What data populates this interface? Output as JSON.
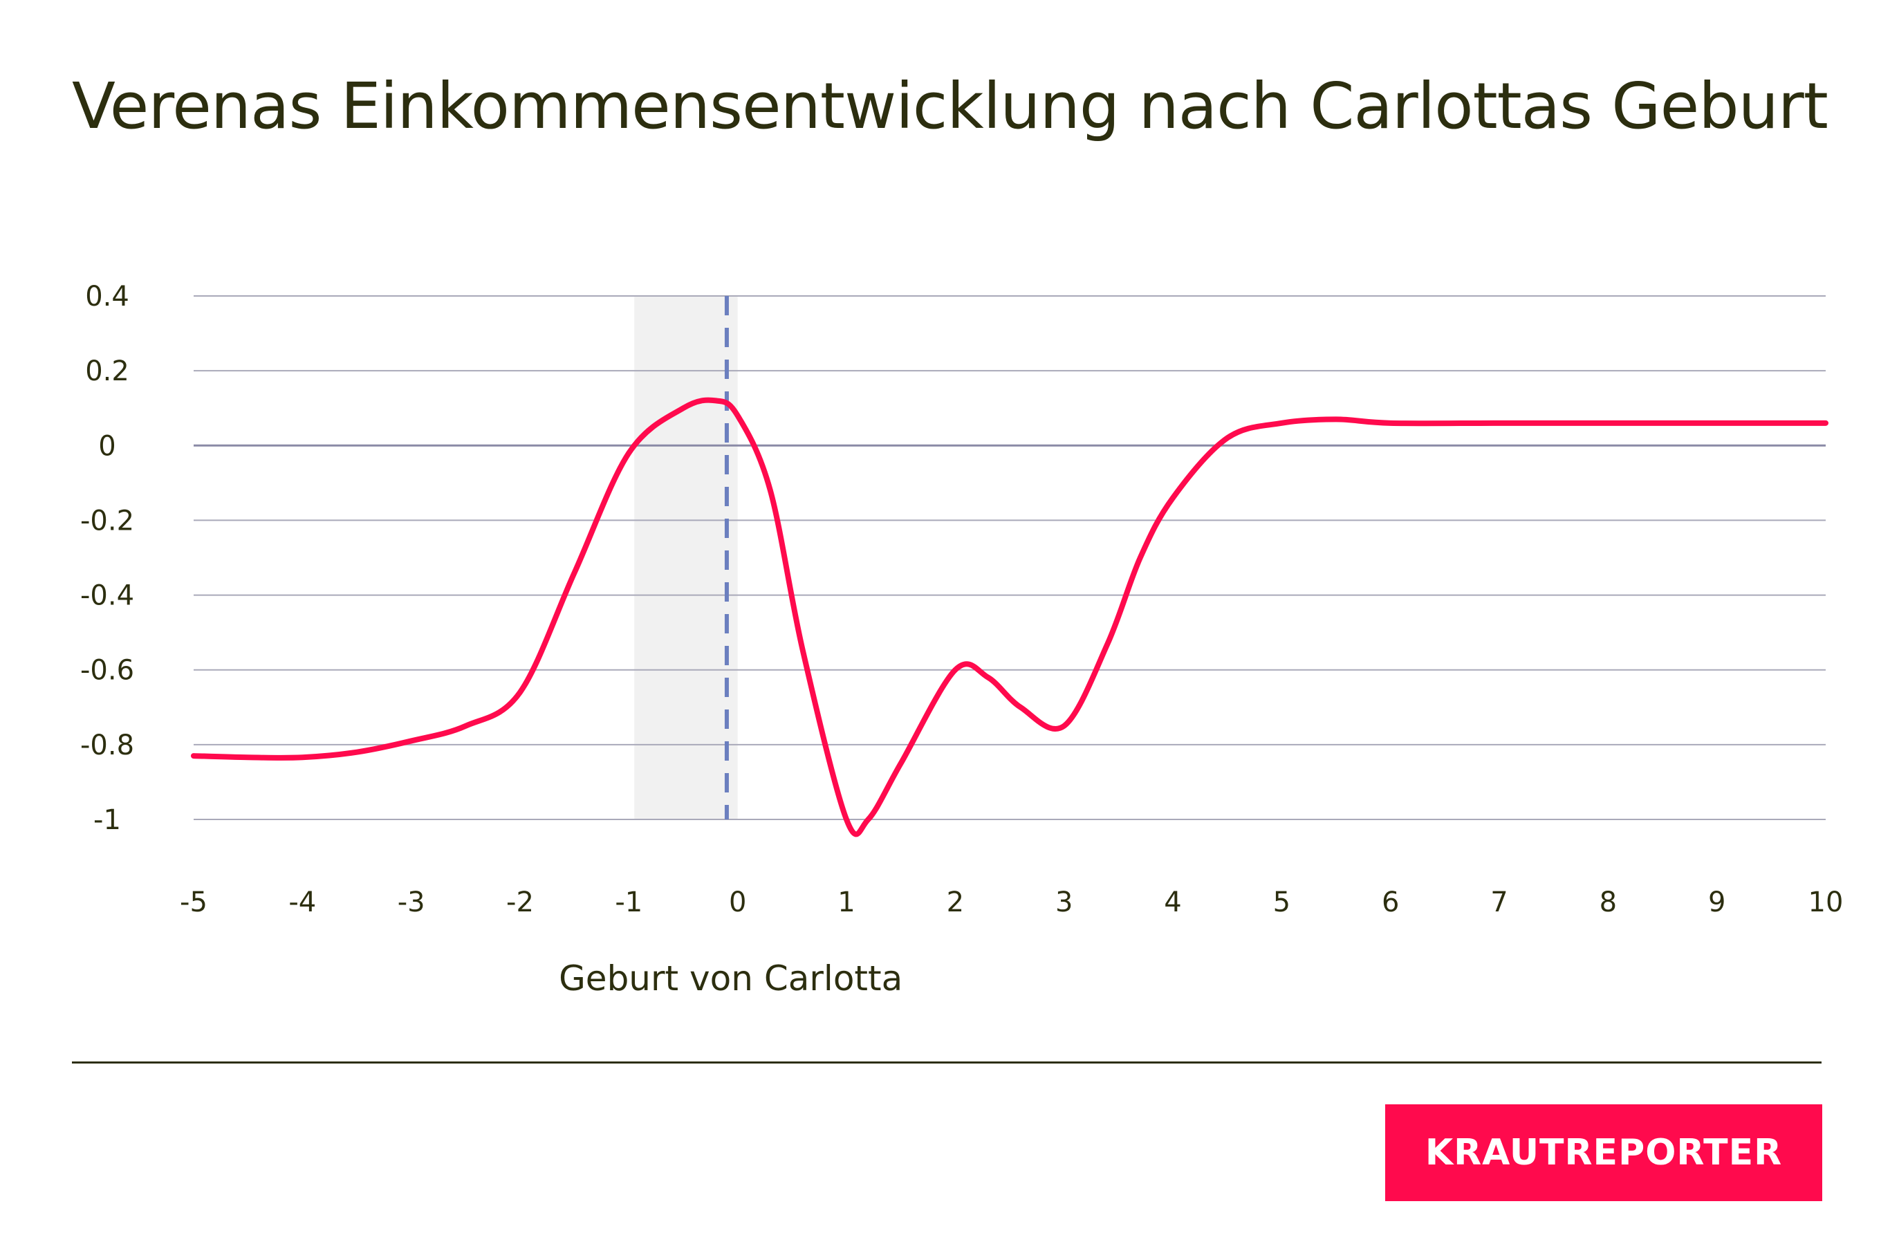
{
  "title": "Verenas Einkommensentwicklung nach Carlottas Geburt",
  "brand": {
    "label": "KRAUTREPORTER",
    "color": "#ff0a4d"
  },
  "chart_data": {
    "type": "line",
    "title": "Verenas Einkommensentwicklung nach Carlottas Geburt",
    "xlabel": "",
    "ylabel": "",
    "xlim": [
      -5,
      10
    ],
    "ylim": [
      -1,
      0.4
    ],
    "x_ticks": [
      -5,
      -4,
      -3,
      -2,
      -1,
      0,
      1,
      2,
      3,
      4,
      5,
      6,
      7,
      8,
      9,
      10
    ],
    "x_tick_labels": [
      "-5",
      "-4",
      "-3",
      "-2",
      "-1",
      "0",
      "1",
      "2",
      "3",
      "4",
      "5",
      "6",
      "7",
      "8",
      "9",
      "10"
    ],
    "y_ticks": [
      0.4,
      0.2,
      0,
      -0.2,
      -0.4,
      -0.6,
      -0.8,
      -1
    ],
    "y_tick_labels": [
      "0.4",
      "0.2",
      "0",
      "-0.2",
      "-0.4",
      "-0.6",
      "-0.8",
      "-1"
    ],
    "grid": "horizontal",
    "highlight_band": {
      "x": [
        -0.95,
        0
      ]
    },
    "reference_line": {
      "x": -0.1,
      "style": "dashed",
      "color": "#6b7fbf"
    },
    "annotation": {
      "text": "Geburt von Carlotta",
      "x": 0
    },
    "series": [
      {
        "color": "#ff0a4d",
        "x": [
          -5,
          -4.5,
          -4,
          -3.5,
          -3,
          -2.5,
          -2,
          -1.5,
          -1,
          -0.5,
          -0.2,
          0,
          0.3,
          0.6,
          1,
          1.2,
          1.5,
          2,
          2.3,
          2.6,
          3,
          3.4,
          3.7,
          4,
          4.5,
          5,
          5.5,
          6,
          7,
          8,
          9,
          10
        ],
        "y": [
          -0.83,
          -0.834,
          -0.834,
          -0.82,
          -0.79,
          -0.75,
          -0.66,
          -0.34,
          -0.02,
          0.1,
          0.12,
          0.08,
          -0.12,
          -0.55,
          -1.0,
          -1.0,
          -0.85,
          -0.6,
          -0.62,
          -0.7,
          -0.75,
          -0.53,
          -0.3,
          -0.14,
          0.02,
          0.06,
          0.07,
          0.06,
          0.06,
          0.06,
          0.06,
          0.06
        ]
      }
    ]
  }
}
